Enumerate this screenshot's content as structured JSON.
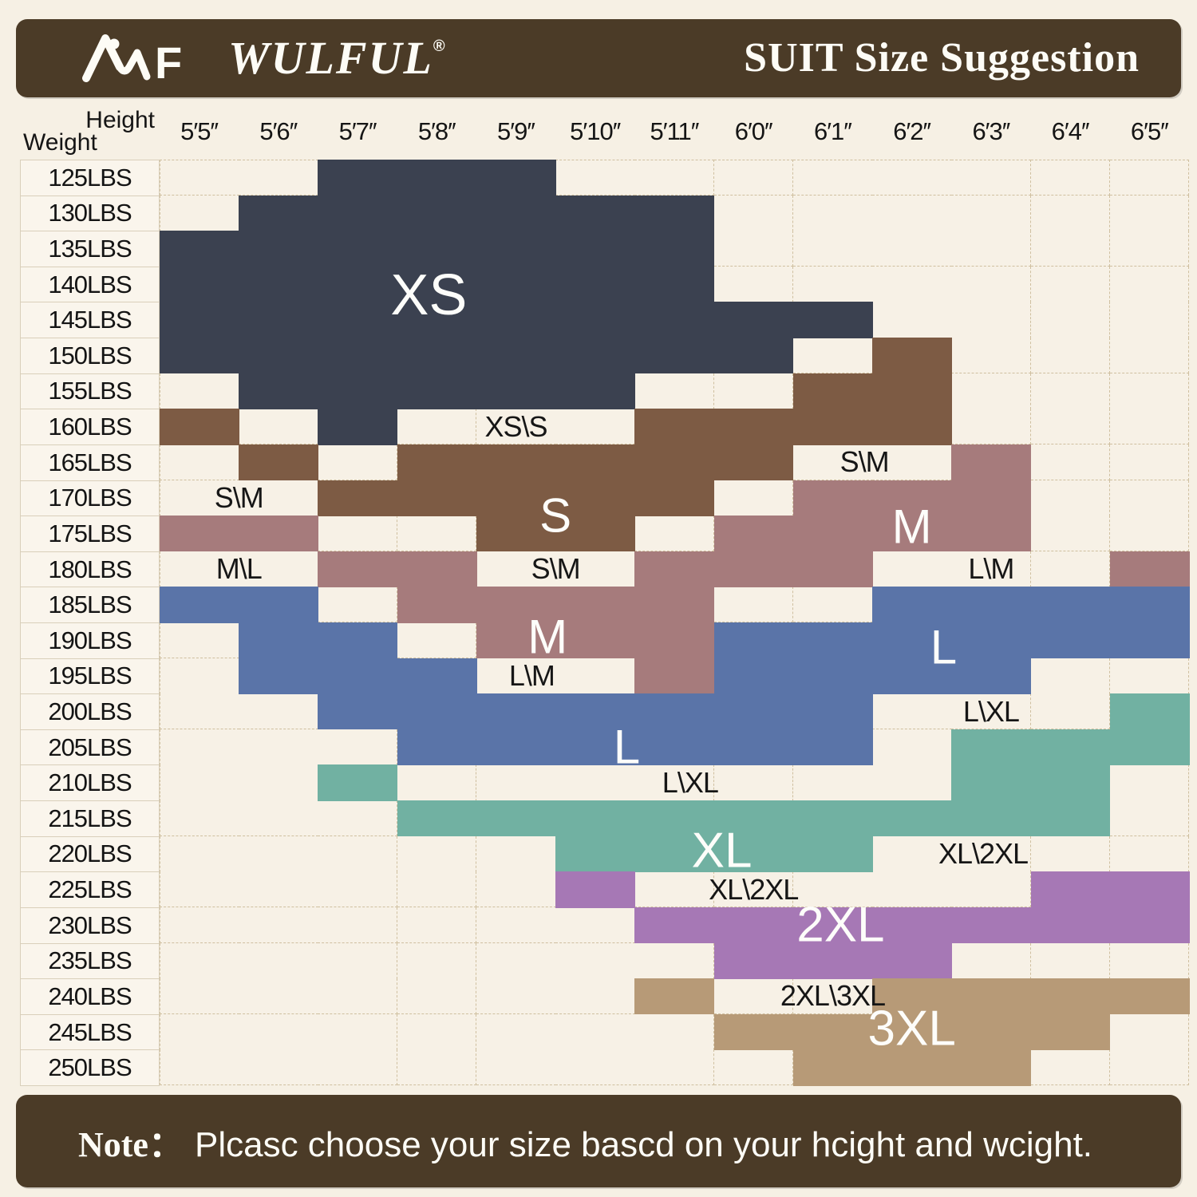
{
  "header": {
    "brand": "WULFUL",
    "registered": "®",
    "title": "SUIT Size Suggestion",
    "logo": "amf-mountain-logo"
  },
  "corner": {
    "height_label": "Height",
    "weight_label": "Weight"
  },
  "footer": {
    "note_prefix": "Note：",
    "note_text": "Plcasc choose your size bascd on your hcight and wcight."
  },
  "colors": {
    "XS": "#3b4150",
    "S": "#7d5b44",
    "M": "#a67b7c",
    "L": "#5a74a8",
    "XL": "#71b1a2",
    "2XL": "#a678b5",
    "3XL": "#b79a77",
    "bar": "#4b3b27",
    "background": "#f6f0e4"
  },
  "chart_data": {
    "type": "heatmap",
    "title": "SUIT Size Suggestion",
    "x_axis": {
      "label": "Height",
      "ticks": [
        "5′5′′",
        "5′6′′",
        "5′7′′",
        "5′8′′",
        "5′9′′",
        "5′10′′",
        "5′11′′",
        "6′0′′",
        "6′1′′",
        "6′2′′",
        "6′3′′",
        "6′4′′",
        "6′5′′"
      ]
    },
    "y_axis": {
      "label": "Weight",
      "ticks": [
        "125LBS",
        "130LBS",
        "135LBS",
        "140LBS",
        "145LBS",
        "150LBS",
        "155LBS",
        "160LBS",
        "165LBS",
        "170LBS",
        "175LBS",
        "180LBS",
        "185LBS",
        "190LBS",
        "195LBS",
        "200LBS",
        "205LBS",
        "210LBS",
        "215LBS",
        "220LBS",
        "225LBS",
        "230LBS",
        "235LBS",
        "240LBS",
        "245LBS",
        "250LBS"
      ],
      "grid": "dashed"
    },
    "cells": [
      {
        "weight": "125LBS",
        "spans": [
          {
            "size": "XS",
            "from": 3,
            "to": 5
          }
        ]
      },
      {
        "weight": "130LBS",
        "spans": [
          {
            "size": "XS",
            "from": 2,
            "to": 7
          }
        ]
      },
      {
        "weight": "135LBS",
        "spans": [
          {
            "size": "XS",
            "from": 1,
            "to": 7
          }
        ]
      },
      {
        "weight": "140LBS",
        "spans": [
          {
            "size": "XS",
            "from": 1,
            "to": 7
          }
        ]
      },
      {
        "weight": "145LBS",
        "spans": [
          {
            "size": "XS",
            "from": 1,
            "to": 9
          }
        ]
      },
      {
        "weight": "150LBS",
        "spans": [
          {
            "size": "XS",
            "from": 1,
            "to": 8
          },
          {
            "size": "S",
            "from": 10,
            "to": 10
          }
        ]
      },
      {
        "weight": "155LBS",
        "spans": [
          {
            "size": "XS",
            "from": 2,
            "to": 6
          },
          {
            "size": "S",
            "from": 9,
            "to": 10
          }
        ]
      },
      {
        "weight": "160LBS",
        "spans": [
          {
            "size": "S",
            "from": 1,
            "to": 1
          },
          {
            "size": "XS",
            "from": 3,
            "to": 3
          },
          {
            "size": "S",
            "from": 7,
            "to": 10
          }
        ]
      },
      {
        "weight": "165LBS",
        "spans": [
          {
            "size": "S",
            "from": 2,
            "to": 2
          },
          {
            "size": "S",
            "from": 4,
            "to": 8
          },
          {
            "size": "M",
            "from": 11,
            "to": 11
          }
        ]
      },
      {
        "weight": "170LBS",
        "spans": [
          {
            "size": "S",
            "from": 3,
            "to": 7
          },
          {
            "size": "M",
            "from": 9,
            "to": 11
          }
        ]
      },
      {
        "weight": "175LBS",
        "spans": [
          {
            "size": "M",
            "from": 1,
            "to": 2
          },
          {
            "size": "S",
            "from": 5,
            "to": 6
          },
          {
            "size": "M",
            "from": 8,
            "to": 11
          }
        ]
      },
      {
        "weight": "180LBS",
        "spans": [
          {
            "size": "M",
            "from": 3,
            "to": 4
          },
          {
            "size": "M",
            "from": 7,
            "to": 9
          },
          {
            "size": "M",
            "from": 13,
            "to": 13
          }
        ]
      },
      {
        "weight": "185LBS",
        "spans": [
          {
            "size": "L",
            "from": 1,
            "to": 2
          },
          {
            "size": "M",
            "from": 4,
            "to": 7
          },
          {
            "size": "L",
            "from": 10,
            "to": 13
          }
        ]
      },
      {
        "weight": "190LBS",
        "spans": [
          {
            "size": "L",
            "from": 2,
            "to": 3
          },
          {
            "size": "M",
            "from": 5,
            "to": 7
          },
          {
            "size": "L",
            "from": 8,
            "to": 13
          }
        ]
      },
      {
        "weight": "195LBS",
        "spans": [
          {
            "size": "L",
            "from": 2,
            "to": 4
          },
          {
            "size": "M",
            "from": 7,
            "to": 7
          },
          {
            "size": "L",
            "from": 8,
            "to": 11
          }
        ]
      },
      {
        "weight": "200LBS",
        "spans": [
          {
            "size": "L",
            "from": 3,
            "to": 9
          },
          {
            "size": "XL",
            "from": 13,
            "to": 13
          }
        ]
      },
      {
        "weight": "205LBS",
        "spans": [
          {
            "size": "L",
            "from": 4,
            "to": 9
          },
          {
            "size": "XL",
            "from": 11,
            "to": 13
          }
        ]
      },
      {
        "weight": "210LBS",
        "spans": [
          {
            "size": "XL",
            "from": 3,
            "to": 3
          },
          {
            "size": "XL",
            "from": 11,
            "to": 12
          }
        ]
      },
      {
        "weight": "215LBS",
        "spans": [
          {
            "size": "XL",
            "from": 4,
            "to": 12
          }
        ]
      },
      {
        "weight": "220LBS",
        "spans": [
          {
            "size": "XL",
            "from": 6,
            "to": 9
          }
        ]
      },
      {
        "weight": "225LBS",
        "spans": [
          {
            "size": "2XL",
            "from": 6,
            "to": 6
          },
          {
            "size": "2XL",
            "from": 12,
            "to": 13
          }
        ]
      },
      {
        "weight": "230LBS",
        "spans": [
          {
            "size": "2XL",
            "from": 7,
            "to": 13
          }
        ]
      },
      {
        "weight": "235LBS",
        "spans": [
          {
            "size": "2XL",
            "from": 8,
            "to": 10
          }
        ]
      },
      {
        "weight": "240LBS",
        "spans": [
          {
            "size": "3XL",
            "from": 7,
            "to": 7
          },
          {
            "size": "3XL",
            "from": 10,
            "to": 13
          }
        ]
      },
      {
        "weight": "245LBS",
        "spans": [
          {
            "size": "3XL",
            "from": 8,
            "to": 12
          }
        ]
      },
      {
        "weight": "250LBS",
        "spans": [
          {
            "size": "3XL",
            "from": 9,
            "to": 11
          }
        ]
      }
    ],
    "region_labels": [
      {
        "text": "XS",
        "col": 3.9,
        "row": 4.3,
        "font": 72
      },
      {
        "text": "S",
        "col": 5.5,
        "row": 10.5,
        "font": 60
      },
      {
        "text": "M",
        "col": 10.0,
        "row": 10.8,
        "font": 60
      },
      {
        "text": "M",
        "col": 5.4,
        "row": 13.9,
        "font": 60
      },
      {
        "text": "L",
        "col": 10.4,
        "row": 14.2,
        "font": 60
      },
      {
        "text": "L",
        "col": 6.4,
        "row": 17.0,
        "font": 60
      },
      {
        "text": "XL",
        "col": 7.6,
        "row": 19.9,
        "font": 62
      },
      {
        "text": "2XL",
        "col": 9.1,
        "row": 22.0,
        "font": 62
      },
      {
        "text": "3XL",
        "col": 10.0,
        "row": 24.9,
        "font": 62
      }
    ],
    "transition_labels": [
      {
        "text": "XS\\S",
        "col": 5.0,
        "row": 8
      },
      {
        "text": "S\\M",
        "col": 9.4,
        "row": 9
      },
      {
        "text": "S\\M",
        "col": 1.5,
        "row": 10
      },
      {
        "text": "M\\L",
        "col": 1.5,
        "row": 12
      },
      {
        "text": "S\\M",
        "col": 5.5,
        "row": 12
      },
      {
        "text": "L\\M",
        "col": 11.0,
        "row": 12
      },
      {
        "text": "L\\M",
        "col": 5.2,
        "row": 15
      },
      {
        "text": "L\\XL",
        "col": 11.0,
        "row": 16
      },
      {
        "text": "L\\XL",
        "col": 7.2,
        "row": 18
      },
      {
        "text": "XL\\2XL",
        "col": 10.9,
        "row": 20
      },
      {
        "text": "XL\\2XL",
        "col": 8.0,
        "row": 21
      },
      {
        "text": "2XL\\3XL",
        "col": 9.0,
        "row": 24
      }
    ]
  }
}
